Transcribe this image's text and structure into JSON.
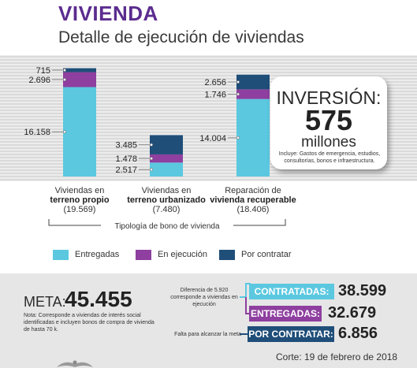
{
  "header": {
    "title": "VIVIENDA",
    "subtitle": "Detalle de ejecución de viviendas"
  },
  "chart_data": {
    "type": "bar",
    "stacked": true,
    "categories": [
      {
        "line1": "Viviendas en",
        "line2": "terreno propio",
        "line3": "(19.569)"
      },
      {
        "line1": "Viviendas en",
        "line2": "terreno urbanizado",
        "line3": "(7.480)"
      },
      {
        "line1": "Reparación de",
        "line2": "vivienda recuperable",
        "line3": "(18.406)"
      }
    ],
    "series": [
      {
        "name": "Entregadas",
        "color": "#5bc8e0",
        "values": [
          16158,
          2517,
          14004
        ],
        "labels": [
          "16.158",
          "2.517",
          "14.004"
        ]
      },
      {
        "name": "En ejecución",
        "color": "#8e3f9f",
        "values": [
          2696,
          1478,
          1746
        ],
        "labels": [
          "2.696",
          "1.478",
          "1.746"
        ]
      },
      {
        "name": "Por contratar",
        "color": "#1f4e79",
        "values": [
          715,
          3485,
          2656
        ],
        "labels": [
          "715",
          "3.485",
          "2.656"
        ]
      }
    ],
    "xlabel": "Tipología de bono de vivienda",
    "ylim": [
      0,
      20500
    ]
  },
  "investment": {
    "title": "INVERSIÓN:",
    "amount": "575",
    "unit": "millones",
    "note": "Incluye: Gastos de emergencia, estudios, consultorías, bonos e infraestructura."
  },
  "summary": {
    "meta_label": "META:",
    "meta_value": "45.455",
    "meta_note": "Nota: Corresponde a viviendas de interés social identificadas e incluyen bonos de compra de vivienda de hasta 70 k.",
    "diff_note": "Diferencia de 5.920 corresponde a viviendas en ejecución",
    "reach_note": "Falta para alcanzar la meta",
    "contratadas_label": "CONTRATADAS:",
    "contratadas_value": "38.599",
    "entregadas_label": "ENTREGADAS:",
    "entregadas_value": "32.679",
    "por_contratar_label": "POR CONTRATAR:",
    "por_contratar_value": "6.856",
    "colors": {
      "contratadas": "#5bc8e0",
      "entregadas": "#8e3f9f",
      "por_contratar": "#1f4e79"
    }
  },
  "footer": {
    "corte": "Corte: 19 de febrero de 2018"
  }
}
